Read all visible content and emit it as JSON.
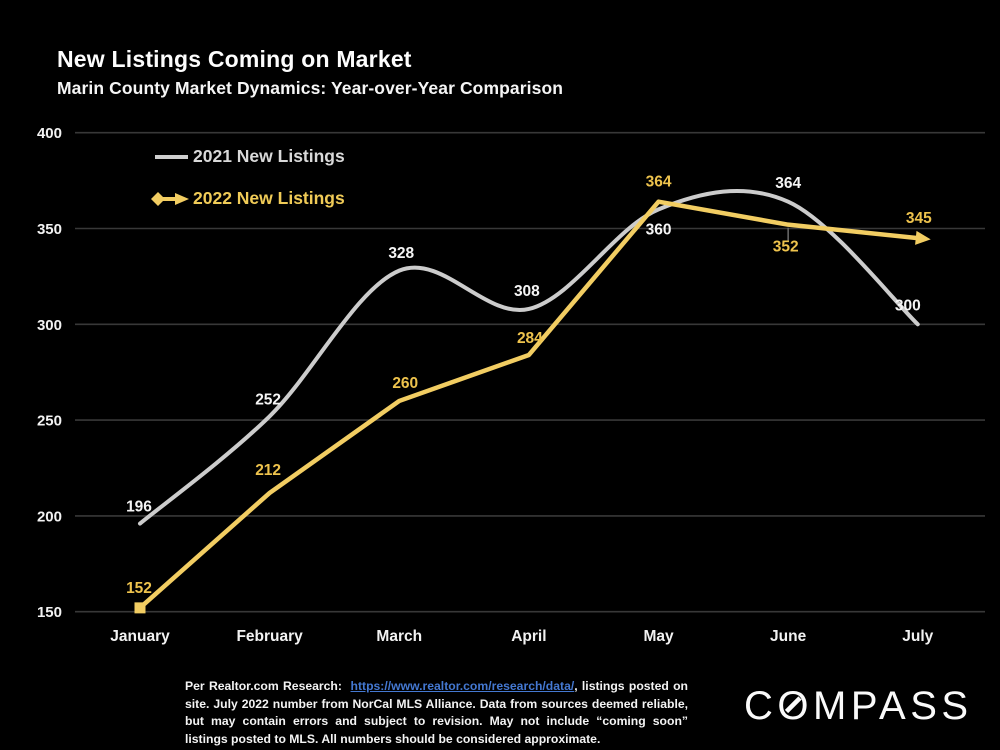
{
  "slide": {
    "title": "New Listings Coming on Market",
    "subtitle": "Marin County Market Dynamics: Year-over-Year Comparison"
  },
  "colors": {
    "background": "#000000",
    "grid": "#383838",
    "axis_text": "#f2f2f2",
    "series_2021_line": "#cccccc",
    "series_2021_label": "#f5f5f5",
    "series_2022_line": "#f2cd62",
    "series_2022_label": "#eec34d",
    "leader_line": "#6b6b6b",
    "link_blue": "#4478d1",
    "logo_white": "#fafafa"
  },
  "chart_data": {
    "type": "line",
    "title": "New Listings Coming on Market",
    "subtitle": "Marin County Market Dynamics: Year-over-Year Comparison",
    "categories": [
      "January",
      "February",
      "March",
      "April",
      "May",
      "June",
      "July"
    ],
    "series": [
      {
        "name": "2021 New Listings",
        "style": "smooth",
        "color": "#cccccc",
        "label_color": "#f5f5f5",
        "values": [
          196,
          252,
          328,
          308,
          360,
          364,
          300
        ]
      },
      {
        "name": "2022 New Listings",
        "style": "straight",
        "color": "#f2cd62",
        "label_color": "#eec34d",
        "start_marker": "square",
        "end_marker": "arrow",
        "values": [
          152,
          212,
          260,
          284,
          364,
          352,
          345
        ]
      }
    ],
    "yticks": [
      150,
      200,
      250,
      300,
      350,
      400
    ],
    "ylim": [
      150,
      400
    ],
    "grid": "horizontal",
    "legend_position": "top-left",
    "xlabel": "",
    "ylabel": ""
  },
  "footer": {
    "pre": "Per Realtor.com Research:  ",
    "link": "https://www.realtor.com/research/data/",
    "post": ", listings posted on site. July 2022 number from NorCal MLS Alliance. Data from sources deemed reliable, but may contain errors and subject to revision. May not include “coming soon” listings posted to MLS. All numbers should be considered approximate."
  },
  "logo": {
    "text": "COMPASS"
  }
}
